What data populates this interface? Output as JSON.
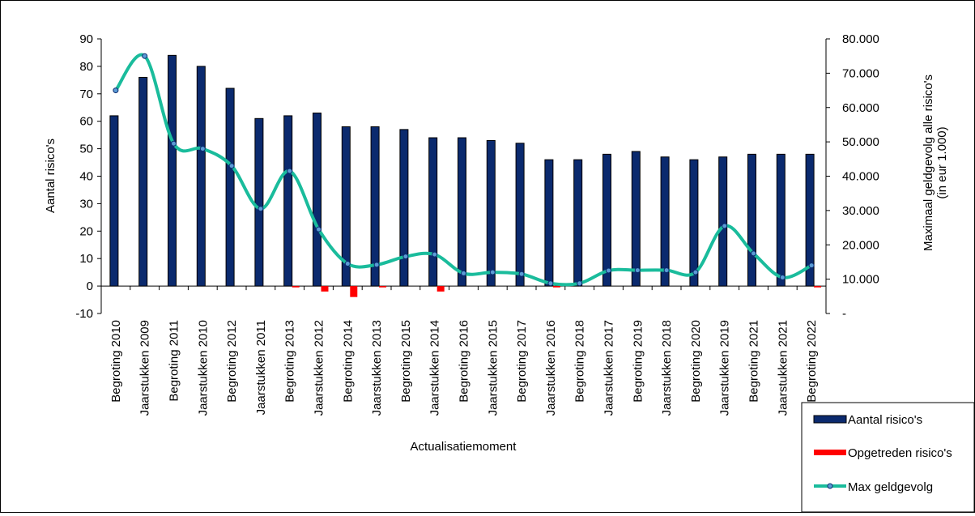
{
  "chart_data": {
    "type": "bar",
    "xlabel": "Actualisatiemoment",
    "ylabel_left": "Aantal risico's",
    "ylabel_right_line1": "Maximaal geldgevolg alle risico's",
    "ylabel_right_line2": "(in eur 1.000)",
    "ylim_left": [
      -10,
      90
    ],
    "ylim_right": [
      0,
      80000
    ],
    "yticks_left": [
      "90",
      "80",
      "70",
      "60",
      "50",
      "40",
      "30",
      "20",
      "10",
      "0",
      "-10"
    ],
    "yticks_right": [
      "80.000",
      "70.000",
      "60.000",
      "50.000",
      "40.000",
      "30.000",
      "20.000",
      "10.000",
      "-"
    ],
    "categories": [
      "Begroting 2010",
      "Jaarstukken 2009",
      "Begroting 2011",
      "Jaarstukken 2010",
      "Begroting 2012",
      "Jaarstukken 2011",
      "Begroting 2013",
      "Jaarstukken 2012",
      "Begroting 2014",
      "Jaarstukken 2013",
      "Begroting 2015",
      "Jaarstukken 2014",
      "Begroting 2016",
      "Jaarstukken 2015",
      "Begroting 2017",
      "Jaarstukken 2016",
      "Begroting 2018",
      "Jaarstukken 2017",
      "Begroting 2019",
      "Jaarstukken 2018",
      "Begroting 2020",
      "Jaarstukken 2019",
      "Begroting 2021",
      "Jaarstukken 2021",
      "Begroting 2022"
    ],
    "series": [
      {
        "name": "Aantal risico's",
        "type": "bar",
        "axis": "left",
        "color": "#0b2a6e",
        "values": [
          62,
          76,
          84,
          80,
          72,
          61,
          62,
          63,
          58,
          58,
          57,
          54,
          54,
          53,
          52,
          46,
          46,
          48,
          49,
          47,
          46,
          47,
          48,
          48,
          48
        ]
      },
      {
        "name": "Opgetreden risico's",
        "type": "bar",
        "axis": "left",
        "color": "#ff0000",
        "values": [
          0,
          0,
          0,
          0,
          0,
          0,
          -0.5,
          -2,
          -4,
          -0.5,
          0,
          -2,
          0,
          0,
          0,
          -0.5,
          0,
          0,
          0,
          0,
          0,
          0,
          0,
          0,
          -0.5
        ]
      },
      {
        "name": "Max geldgevolg",
        "type": "line",
        "axis": "right",
        "color": "#1abc9c",
        "values": [
          65000,
          75000,
          49500,
          48000,
          43000,
          30500,
          41500,
          24500,
          14500,
          14200,
          16600,
          17200,
          11700,
          12000,
          11500,
          8800,
          8800,
          12500,
          12600,
          12600,
          12000,
          25500,
          17500,
          10500,
          14000
        ]
      }
    ],
    "legend": "bottom-right",
    "grid": false
  }
}
